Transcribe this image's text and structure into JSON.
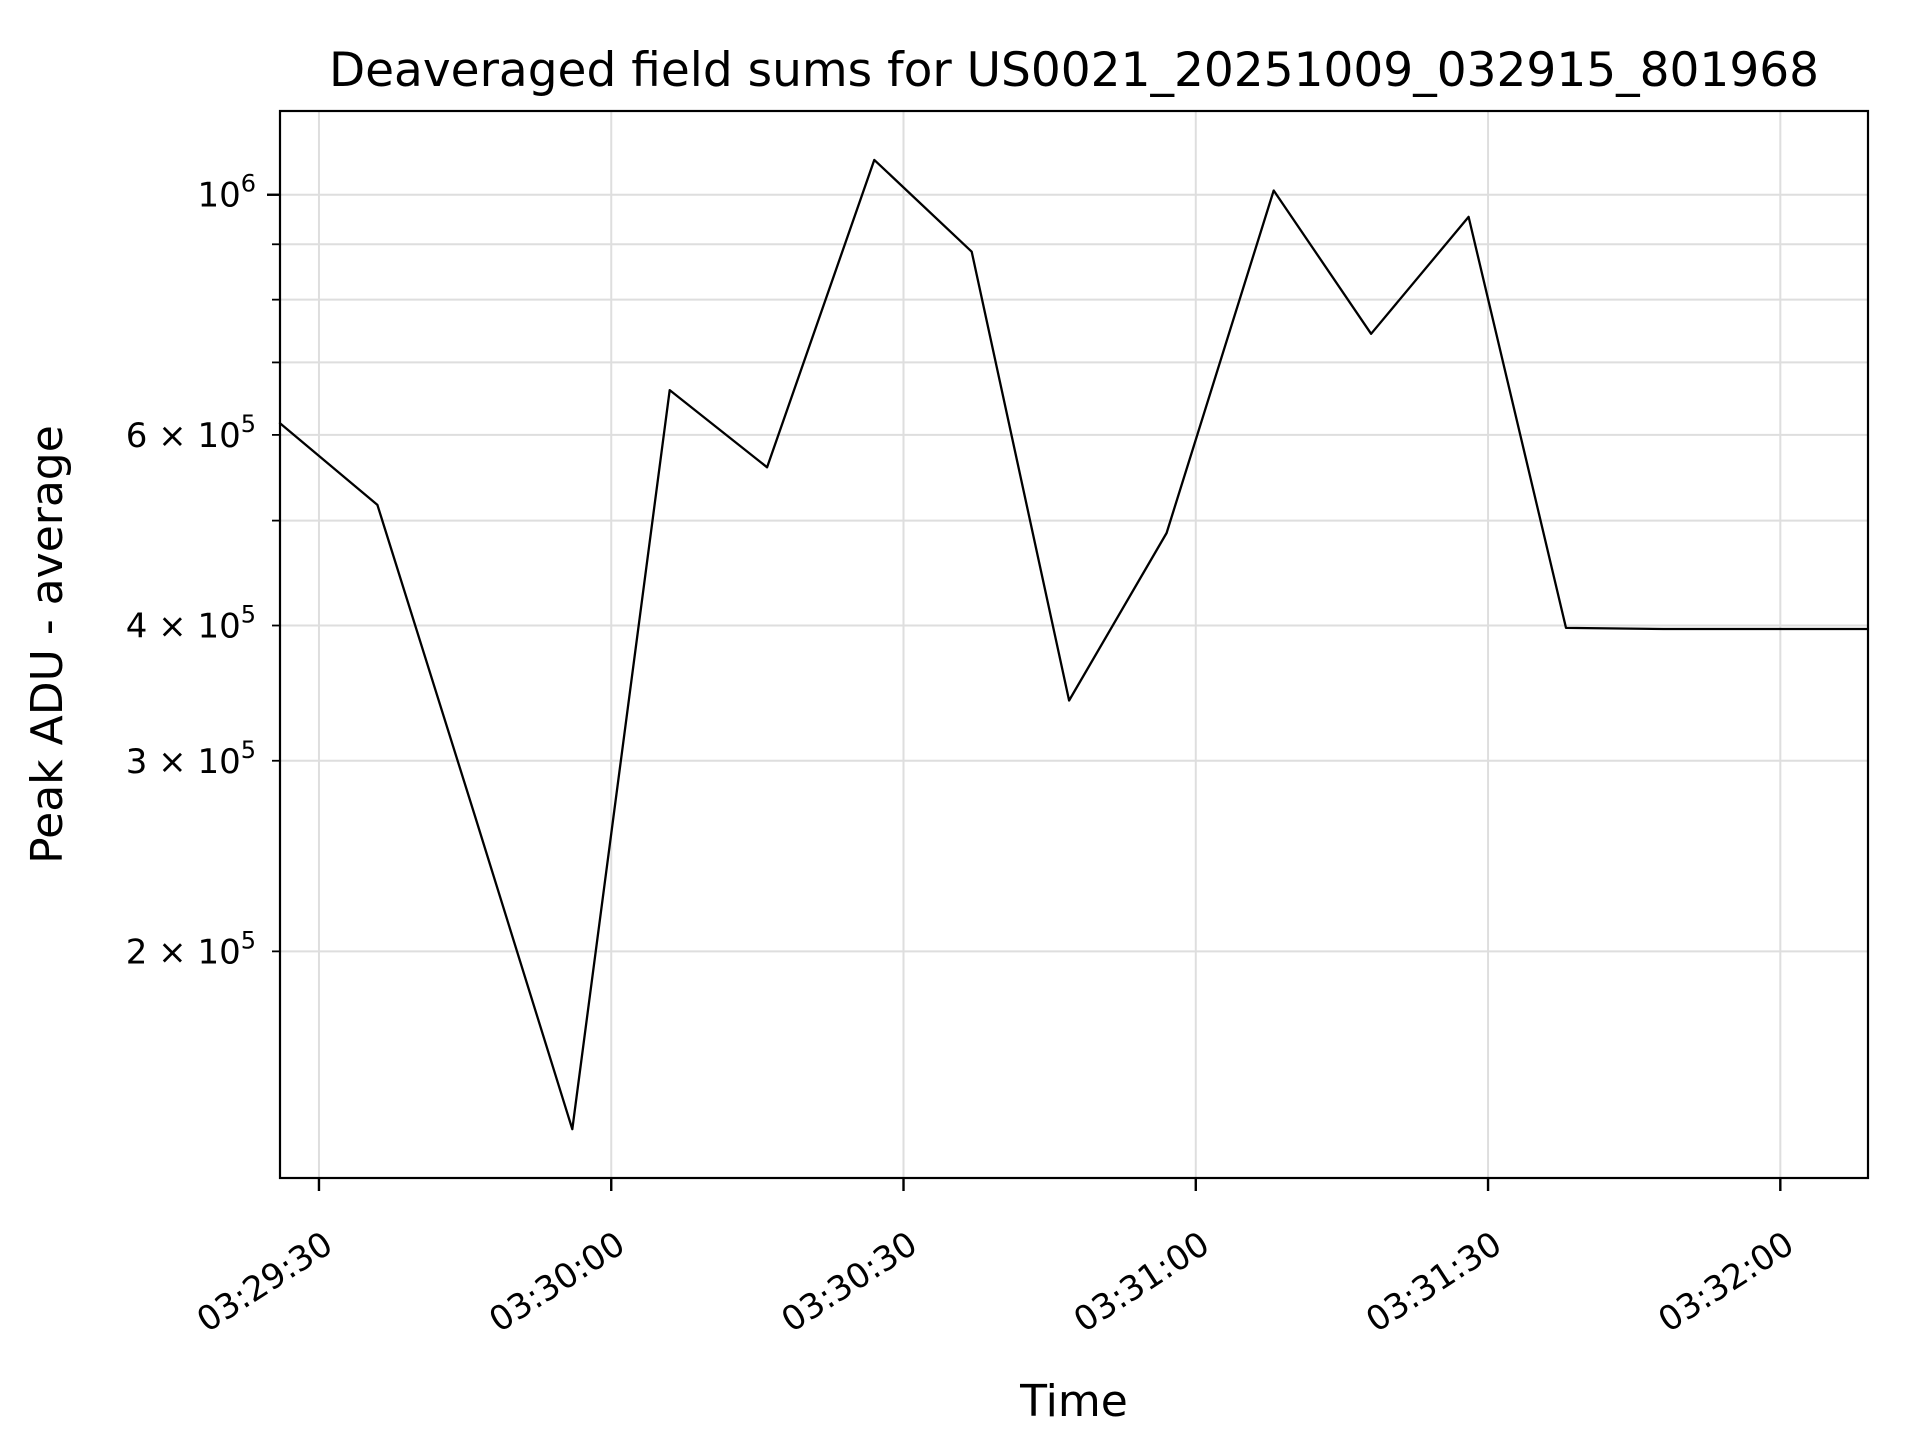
{
  "figure": {
    "background_color": "#ffffff",
    "text_color": "#000000",
    "line_color": "#000000",
    "grid_color": "#dedede",
    "spine_color": "#000000"
  },
  "chart_data": {
    "type": "line",
    "title": "Deaveraged field sums for US0021_20251009_032915_801968",
    "xlabel": "Time",
    "ylabel": "Peak ADU - average",
    "yscale": "log",
    "grid": "on",
    "legend": "none",
    "markers": "none",
    "x": [
      "03:29:26",
      "03:29:36",
      "03:29:46",
      "03:29:56",
      "03:30:06",
      "03:30:16",
      "03:30:27",
      "03:30:37",
      "03:30:47",
      "03:30:57",
      "03:31:08",
      "03:31:18",
      "03:31:28",
      "03:31:38",
      "03:31:48",
      "03:31:58",
      "03:32:09"
    ],
    "values": [
      615000,
      517000,
      267000,
      137000,
      660000,
      560000,
      1077000,
      886000,
      341000,
      487000,
      1009000,
      744000,
      954000,
      398000,
      397000,
      397000,
      397000
    ],
    "ylim": [
      123500,
      1195000
    ],
    "x_ticks": [
      "03:29:30",
      "03:30:00",
      "03:30:30",
      "03:31:00",
      "03:31:30",
      "03:32:00"
    ],
    "x_tick_rotation_deg": 33,
    "y_gridlines": [
      200000,
      300000,
      400000,
      500000,
      600000,
      700000,
      800000,
      900000,
      1000000
    ],
    "y_ticks": [
      {
        "value": 1000000,
        "label": "10^6"
      },
      {
        "value": 600000,
        "label": "6 × 10^5"
      },
      {
        "value": 400000,
        "label": "4 × 10^5"
      },
      {
        "value": 300000,
        "label": "3 × 10^5"
      },
      {
        "value": 200000,
        "label": "2 × 10^5"
      }
    ]
  }
}
